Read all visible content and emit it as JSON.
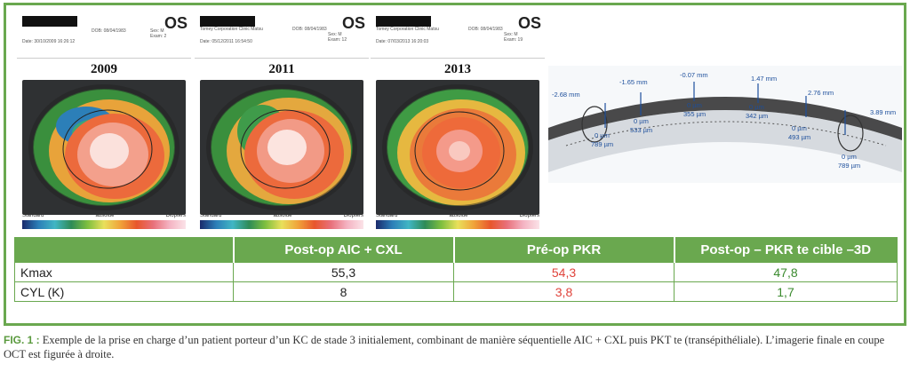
{
  "topographies": [
    {
      "year": "2009",
      "eye": "OS",
      "dob": "DOB: 08/04/1983",
      "sex": "Sex: M",
      "exam": "Exam: 2",
      "date": "Date: 30/10/2009 16:26:12",
      "legend_left": "Standard",
      "legend_mid": "absolue",
      "legend_right": "Diopters"
    },
    {
      "year": "2011",
      "eye": "OS",
      "dob": "DOB: 08/04/1983",
      "sex": "Sex: M",
      "exam": "Exam: 12",
      "date": "Date: 05/12/2011 16:54:50",
      "clinic": "Tomey Corporation Clinic Matsu",
      "legend_left": "Standard",
      "legend_mid": "absolue",
      "legend_right": "Diopters"
    },
    {
      "year": "2013",
      "eye": "OS",
      "dob": "DOB: 08/04/1983",
      "sex": "Sex: M",
      "exam": "Exam: 19",
      "date": "Date: 07/03/2013 16:20:03",
      "clinic": "Tomey Corporation Clinic Matsu",
      "legend_left": "Standard",
      "legend_mid": "absolue",
      "legend_right": "Diopters"
    }
  ],
  "oct": {
    "measurements": [
      "-2.68 mm",
      "-1.65 mm",
      "-0.07 mm",
      "1.47 mm",
      "2.76 mm",
      "3.89 mm"
    ],
    "depths": [
      "0 µm",
      "789 µm",
      "0 µm",
      "533 µm",
      "0 µm",
      "355 µm",
      "0 µm",
      "342 µm",
      "0 µm",
      "493 µm",
      "0 µm",
      "789 µm"
    ]
  },
  "table": {
    "headers": [
      "",
      "Post-op AIC + CXL",
      "Pré-op PKR",
      "Post-op – PKR te cible –3D"
    ],
    "rows": [
      {
        "label": "Kmax",
        "values": [
          "55,3",
          "54,3",
          "47,8"
        ]
      },
      {
        "label": "CYL (K)",
        "values": [
          "8",
          "3,8",
          "1,7"
        ]
      }
    ]
  },
  "caption": {
    "label": "FIG. 1 :",
    "text": " Exemple de la prise en charge d’un patient porteur d’un KC de stade 3 initialement, combinant de manière séquentielle AIC + CXL puis PKT te (transépithéliale). L’imagerie finale en coupe OCT est figurée à droite."
  },
  "colors": {
    "accent": "#6aa84f",
    "red": "#e0433b",
    "green": "#3a8a2e",
    "oct_label": "#1d4f9c"
  }
}
